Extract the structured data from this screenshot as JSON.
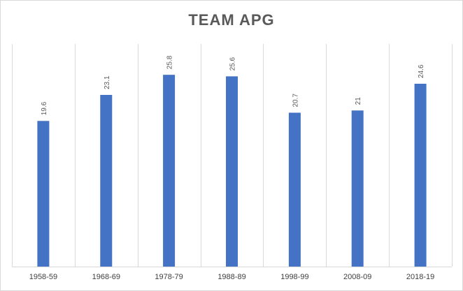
{
  "chart_data": {
    "type": "bar",
    "title": "TEAM APG",
    "xlabel": "",
    "ylabel": "",
    "categories": [
      "1958-59",
      "1968-69",
      "1978-79",
      "1988-89",
      "1998-99",
      "2008-09",
      "2018-19"
    ],
    "values": [
      19.6,
      23.1,
      25.8,
      25.6,
      20.7,
      21,
      24.6
    ],
    "data_labels": [
      "19.6",
      "23.1",
      "25.8",
      "25.6",
      "20.7",
      "21",
      "24.6"
    ],
    "ylim": [
      0,
      28
    ],
    "grid": "vertical",
    "legend": "none",
    "bar_color": "#4472c4",
    "grid_color": "#d9d9d9"
  }
}
